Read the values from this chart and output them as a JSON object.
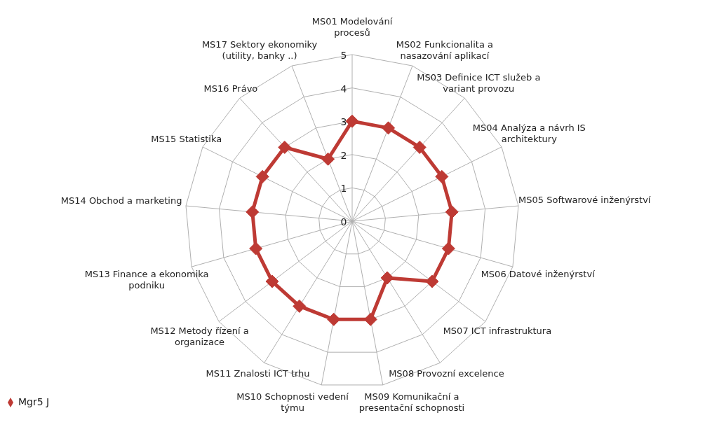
{
  "chart_data": {
    "type": "radar",
    "categories": [
      "MS01 Modelování procesů",
      "MS02 Funkcionalita a nasazování aplikací",
      "MS03 Definice ICT služeb a variant provozu",
      "MS04 Analýza a návrh IS architektury",
      "MS05 Softwarové inženýrství",
      "MS06 Datové inženýrství",
      "MS07 ICT infrastruktura",
      "MS08 Provozní excelence",
      "MS09 Komunikační a presentační schopnosti",
      "MS10 Schopnosti vedení týmu",
      "MS11 Znalosti ICT trhu",
      "MS12 Metody řízení a organizace",
      "MS13 Finance a ekonomika podniku",
      "MS14 Obchod a marketing",
      "MS15 Statistika",
      "MS16 Právo",
      "MS17 Sektory ekonomiky (utility, banky ..)"
    ],
    "series": [
      {
        "name": "Mgr5 J",
        "color": "#be3a34",
        "values": [
          3,
          3,
          3,
          3,
          3,
          3,
          3,
          2,
          3,
          3,
          3,
          3,
          3,
          3,
          3,
          3,
          2
        ]
      }
    ],
    "ylim": [
      0,
      5
    ],
    "yticks": [
      0,
      1,
      2,
      3,
      4,
      5
    ],
    "grid": true,
    "legend": "bottom left",
    "marker": "diamond",
    "line_style": "solid"
  }
}
